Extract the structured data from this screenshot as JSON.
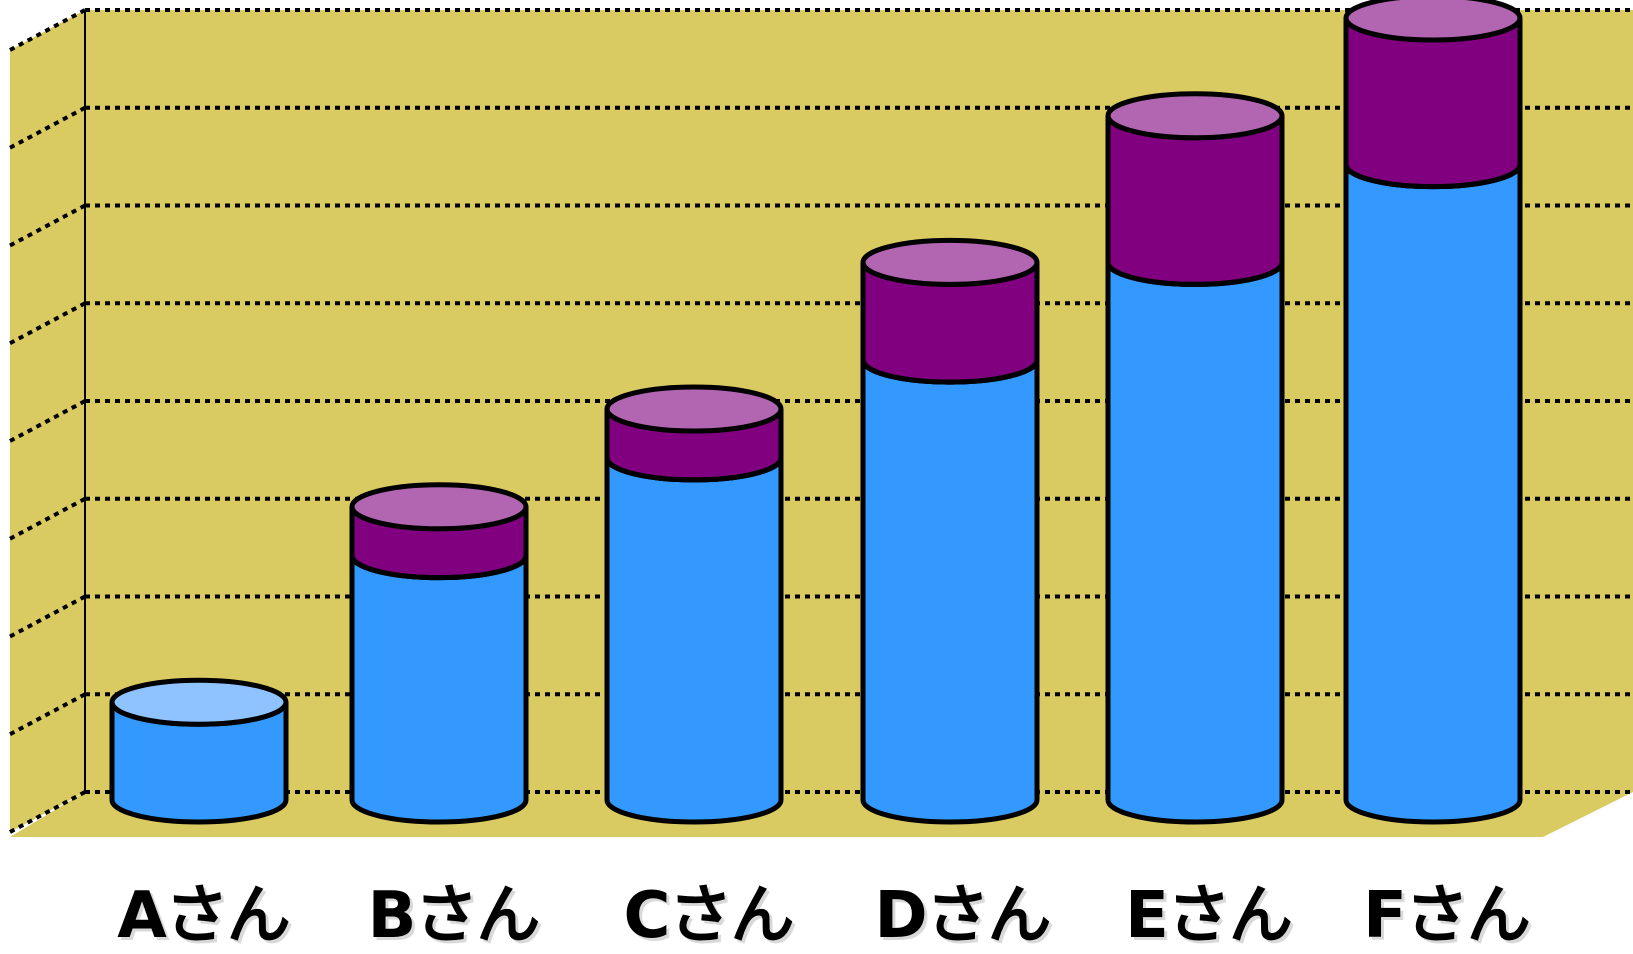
{
  "chart_data": {
    "type": "bar",
    "style": "stacked 3D cylinder",
    "title": "",
    "xlabel": "",
    "ylabel": "",
    "categories": [
      "Aさん",
      "Bさん",
      "Cさん",
      "Dさん",
      "Eさん",
      "Fさん"
    ],
    "series": [
      {
        "values": [
          1,
          2.5,
          3.5,
          4.5,
          5.5,
          6.5
        ]
      },
      {
        "values": [
          0,
          0.5,
          0.5,
          1.0,
          1.5,
          1.5
        ]
      }
    ],
    "ylim": [
      0,
      8
    ],
    "gridlines": "dotted",
    "grid": true,
    "legend": "none",
    "colors": {
      "wall": "#d9ca62",
      "floor": "#d9ca62",
      "series_1_body": "#3399ff",
      "series_1_cap": "#8fc3ff",
      "series_2_body": "#800080",
      "series_2_cap": "#b266b2",
      "outline": "#000000"
    }
  }
}
